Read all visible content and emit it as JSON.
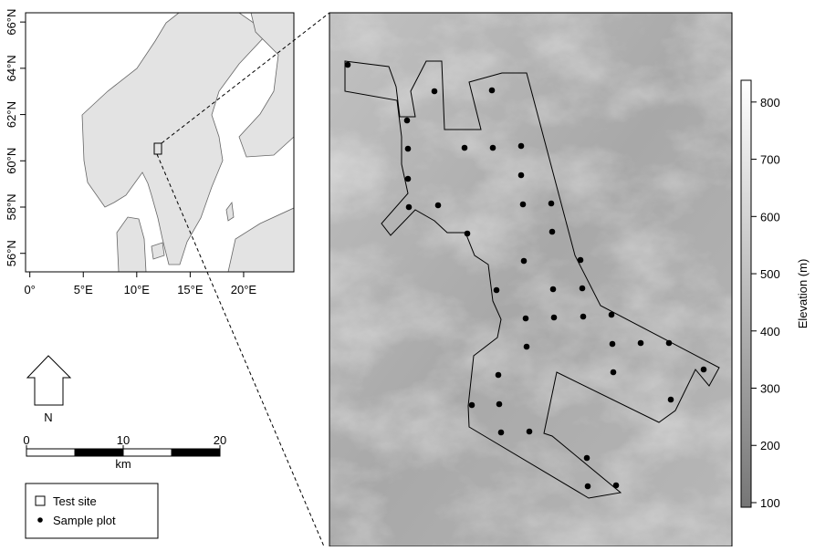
{
  "inset_map": {
    "xlim": [
      -0.4,
      24.7
    ],
    "ylim": [
      55.2,
      66.4
    ],
    "x_ticks": [
      {
        "value": 0,
        "label": "0°"
      },
      {
        "value": 5,
        "label": "5°E"
      },
      {
        "value": 10,
        "label": "10°E"
      },
      {
        "value": 15,
        "label": "15°E"
      },
      {
        "value": 20,
        "label": "20°E"
      }
    ],
    "y_ticks": [
      {
        "value": 56,
        "label": "56°N"
      },
      {
        "value": 58,
        "label": "58°N"
      },
      {
        "value": 60,
        "label": "60°N"
      },
      {
        "value": 62,
        "label": "62°N"
      },
      {
        "value": 64,
        "label": "64°N"
      },
      {
        "value": 66,
        "label": "66°N"
      }
    ]
  },
  "north_arrow": {
    "label": "N"
  },
  "scale_bar": {
    "xlim": [
      0,
      20
    ],
    "ticks": [
      0,
      10,
      20
    ],
    "unit": "km"
  },
  "legend": {
    "items": [
      "Test site",
      "Sample plot"
    ]
  },
  "colorbar": {
    "label": "Elevation (m)",
    "ylim": [
      92,
      838
    ],
    "ticks": [
      100,
      200,
      300,
      400,
      500,
      600,
      700,
      800
    ]
  }
}
